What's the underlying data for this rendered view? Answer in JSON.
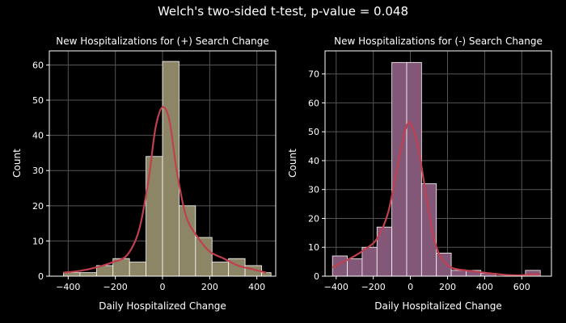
{
  "suptitle": "Welch's two-sided t-test, p-value = 0.048",
  "chart_data": [
    {
      "type": "histogram",
      "title": "New Hospitalizations for (+) Search Change",
      "xlabel": "Daily Hospitalized Change",
      "ylabel": "Count",
      "xlim": [
        -480,
        480
      ],
      "ylim": [
        0,
        64
      ],
      "xticks": [
        -400,
        -200,
        0,
        200,
        400
      ],
      "yticks": [
        0,
        10,
        20,
        30,
        40,
        50,
        60
      ],
      "grid": true,
      "bar_color": "#8c8566",
      "kde_color": "#c0404f",
      "bins": [
        {
          "x0": -420,
          "x1": -350,
          "count": 1
        },
        {
          "x0": -350,
          "x1": -280,
          "count": 1
        },
        {
          "x0": -280,
          "x1": -210,
          "count": 3
        },
        {
          "x0": -210,
          "x1": -140,
          "count": 5
        },
        {
          "x0": -140,
          "x1": -70,
          "count": 4
        },
        {
          "x0": -70,
          "x1": 0,
          "count": 34
        },
        {
          "x0": 0,
          "x1": 70,
          "count": 61
        },
        {
          "x0": 70,
          "x1": 140,
          "count": 20
        },
        {
          "x0": 140,
          "x1": 210,
          "count": 11
        },
        {
          "x0": 210,
          "x1": 280,
          "count": 4
        },
        {
          "x0": 280,
          "x1": 350,
          "count": 5
        },
        {
          "x0": 350,
          "x1": 420,
          "count": 3
        },
        {
          "x0": 420,
          "x1": 460,
          "count": 1
        }
      ],
      "kde": [
        {
          "x": -420,
          "y": 1
        },
        {
          "x": -350,
          "y": 1.5
        },
        {
          "x": -280,
          "y": 2.5
        },
        {
          "x": -210,
          "y": 4
        },
        {
          "x": -150,
          "y": 6
        },
        {
          "x": -100,
          "y": 13
        },
        {
          "x": -60,
          "y": 27
        },
        {
          "x": -30,
          "y": 42
        },
        {
          "x": 0,
          "y": 48
        },
        {
          "x": 30,
          "y": 44
        },
        {
          "x": 60,
          "y": 30
        },
        {
          "x": 100,
          "y": 17
        },
        {
          "x": 150,
          "y": 11
        },
        {
          "x": 200,
          "y": 7
        },
        {
          "x": 260,
          "y": 5
        },
        {
          "x": 320,
          "y": 3
        },
        {
          "x": 380,
          "y": 2
        },
        {
          "x": 440,
          "y": 1
        }
      ]
    },
    {
      "type": "histogram",
      "title": "New Hospitalizations for (-) Search Change",
      "xlabel": "Daily Hospitalized Change",
      "ylabel": "Count",
      "xlim": [
        -460,
        760
      ],
      "ylim": [
        0,
        78
      ],
      "xticks": [
        -400,
        -200,
        0,
        200,
        400,
        600
      ],
      "yticks": [
        0,
        10,
        20,
        30,
        40,
        50,
        60,
        70
      ],
      "grid": true,
      "bar_color": "#835778",
      "kde_color": "#c0404f",
      "bins": [
        {
          "x0": -420,
          "x1": -340,
          "count": 7
        },
        {
          "x0": -340,
          "x1": -260,
          "count": 6
        },
        {
          "x0": -260,
          "x1": -180,
          "count": 10
        },
        {
          "x0": -180,
          "x1": -100,
          "count": 17
        },
        {
          "x0": -100,
          "x1": -20,
          "count": 74
        },
        {
          "x0": -20,
          "x1": 60,
          "count": 74
        },
        {
          "x0": 60,
          "x1": 140,
          "count": 32
        },
        {
          "x0": 140,
          "x1": 220,
          "count": 8
        },
        {
          "x0": 220,
          "x1": 300,
          "count": 2
        },
        {
          "x0": 300,
          "x1": 380,
          "count": 2
        },
        {
          "x0": 380,
          "x1": 460,
          "count": 1
        },
        {
          "x0": 460,
          "x1": 540,
          "count": 0
        },
        {
          "x0": 540,
          "x1": 620,
          "count": 0
        },
        {
          "x0": 620,
          "x1": 700,
          "count": 2
        }
      ],
      "kde": [
        {
          "x": -420,
          "y": 3
        },
        {
          "x": -360,
          "y": 5
        },
        {
          "x": -300,
          "y": 7
        },
        {
          "x": -240,
          "y": 9.5
        },
        {
          "x": -180,
          "y": 13
        },
        {
          "x": -120,
          "y": 22
        },
        {
          "x": -70,
          "y": 38
        },
        {
          "x": -30,
          "y": 50
        },
        {
          "x": 0,
          "y": 53
        },
        {
          "x": 40,
          "y": 45
        },
        {
          "x": 80,
          "y": 30
        },
        {
          "x": 120,
          "y": 15
        },
        {
          "x": 160,
          "y": 7
        },
        {
          "x": 220,
          "y": 3
        },
        {
          "x": 300,
          "y": 2
        },
        {
          "x": 400,
          "y": 1.2
        },
        {
          "x": 500,
          "y": 0.5
        },
        {
          "x": 580,
          "y": 0.3
        },
        {
          "x": 650,
          "y": 0.6
        },
        {
          "x": 700,
          "y": 0.7
        }
      ]
    }
  ]
}
